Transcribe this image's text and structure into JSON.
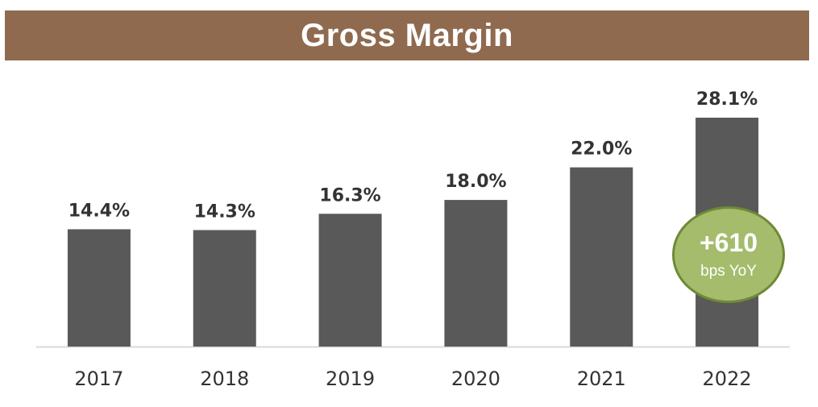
{
  "chart_data": {
    "type": "bar",
    "title": "Gross Margin",
    "categories": [
      "2017",
      "2018",
      "2019",
      "2020",
      "2021",
      "2022"
    ],
    "values": [
      14.4,
      14.3,
      16.3,
      18.0,
      22.0,
      28.1
    ],
    "value_labels": [
      "14.4%",
      "14.3%",
      "16.3%",
      "18.0%",
      "22.0%",
      "28.1%"
    ],
    "unit": "%",
    "xlabel": "",
    "ylabel": "",
    "ylim": [
      0,
      28.1
    ],
    "grid": false,
    "bar_color": "#595959",
    "annotation": {
      "value": "+610",
      "caption": "bps YoY",
      "fill": "#a4bc6c",
      "border": "#6f8a36"
    }
  },
  "colors": {
    "title_bg": "#8f6a4f",
    "title_text": "#ffffff"
  }
}
